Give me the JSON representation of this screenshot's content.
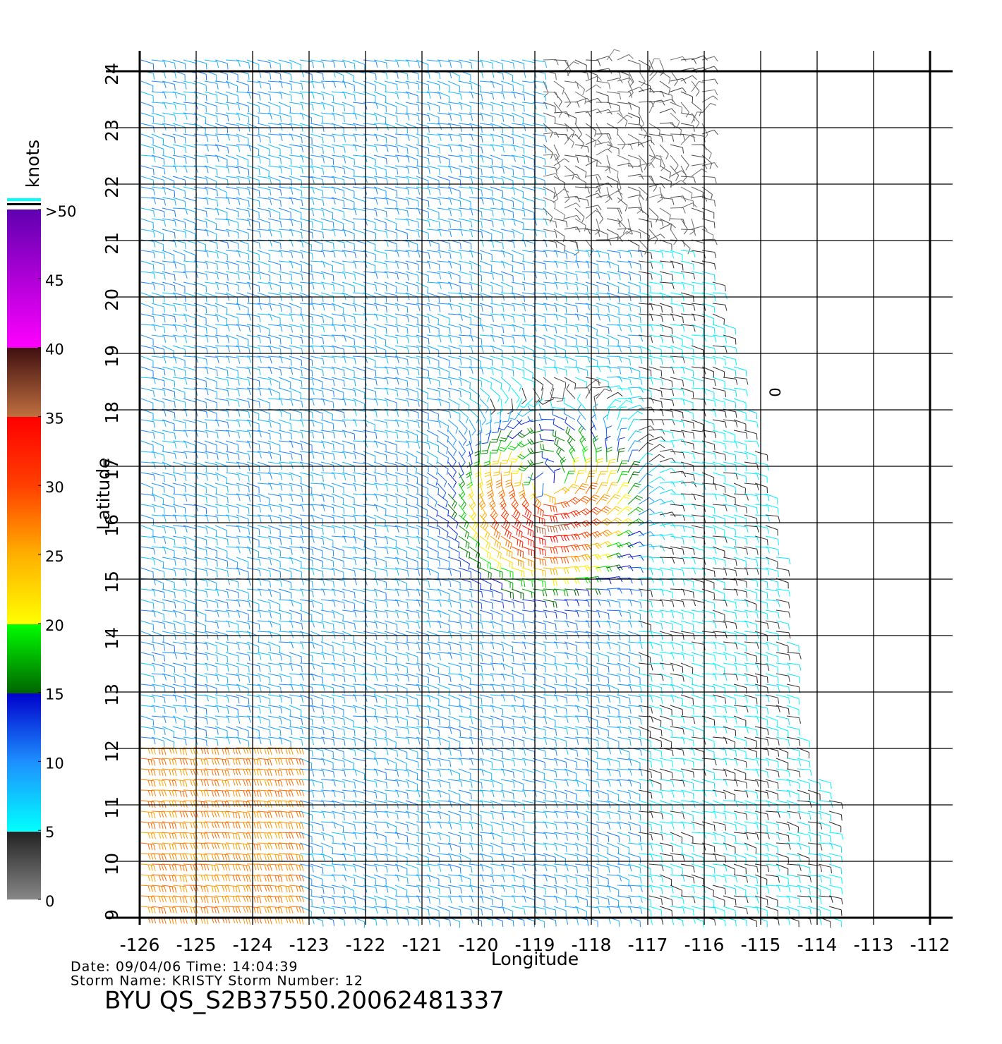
{
  "chart_data": {
    "type": "barb",
    "title": "BYU QS_S2B37550.20062481337",
    "date_line": "Date: 09/04/06   Time: 14:04:39",
    "storm_line": "Storm Name: KRISTY   Storm Number: 12",
    "x_label": "Longitude",
    "y_label": "Latitude",
    "xlim": [
      -126,
      -112
    ],
    "ylim": [
      9,
      24
    ],
    "xticks": [
      -126,
      -125,
      -124,
      -123,
      -122,
      -121,
      -120,
      -119,
      -118,
      -117,
      -116,
      -115,
      -114,
      -113,
      -112
    ],
    "yticks": [
      9,
      10,
      11,
      12,
      13,
      14,
      15,
      16,
      17,
      18,
      19,
      20,
      21,
      22,
      23,
      24
    ],
    "annotation": "0",
    "colorbar": {
      "label": "knots",
      "lim": [
        0,
        50
      ],
      "ticks": [
        0,
        5,
        10,
        15,
        20,
        25,
        30,
        35,
        40,
        45,
        {
          "value": 50,
          "label": ">50"
        }
      ],
      "stops": [
        [
          0,
          "#888888"
        ],
        [
          5,
          "#222222"
        ],
        [
          5,
          "#00ffff"
        ],
        [
          10,
          "#1e90ff"
        ],
        [
          15,
          "#0000cc"
        ],
        [
          15,
          "#006400"
        ],
        [
          20,
          "#00ff00"
        ],
        [
          20,
          "#ffff00"
        ],
        [
          25,
          "#ffb000"
        ],
        [
          30,
          "#ff4000"
        ],
        [
          35,
          "#ff0000"
        ],
        [
          35,
          "#c07040"
        ],
        [
          40,
          "#401010"
        ],
        [
          40,
          "#ff00ff"
        ],
        [
          50,
          "#6000b0"
        ]
      ]
    }
  }
}
